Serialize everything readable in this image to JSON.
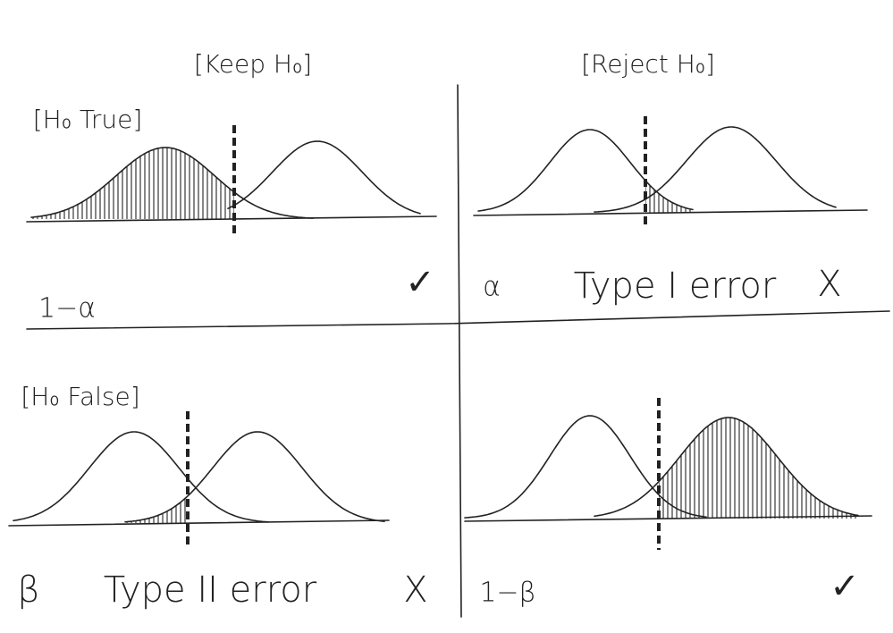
{
  "columns": [
    "[Keep H₀]",
    "[Reject H₀]"
  ],
  "rows": [
    {
      "label": "[H₀ True]",
      "cells": [
        {
          "probability": "1−α",
          "verdict": "✓"
        },
        {
          "probability": "α",
          "outcome": "Type I error",
          "verdict": "X"
        }
      ]
    },
    {
      "label": "[H₀ False]",
      "cells": [
        {
          "probability": "β",
          "outcome": "Type II error",
          "verdict": "X"
        },
        {
          "probability": "1−β",
          "verdict": "✓"
        }
      ]
    }
  ]
}
